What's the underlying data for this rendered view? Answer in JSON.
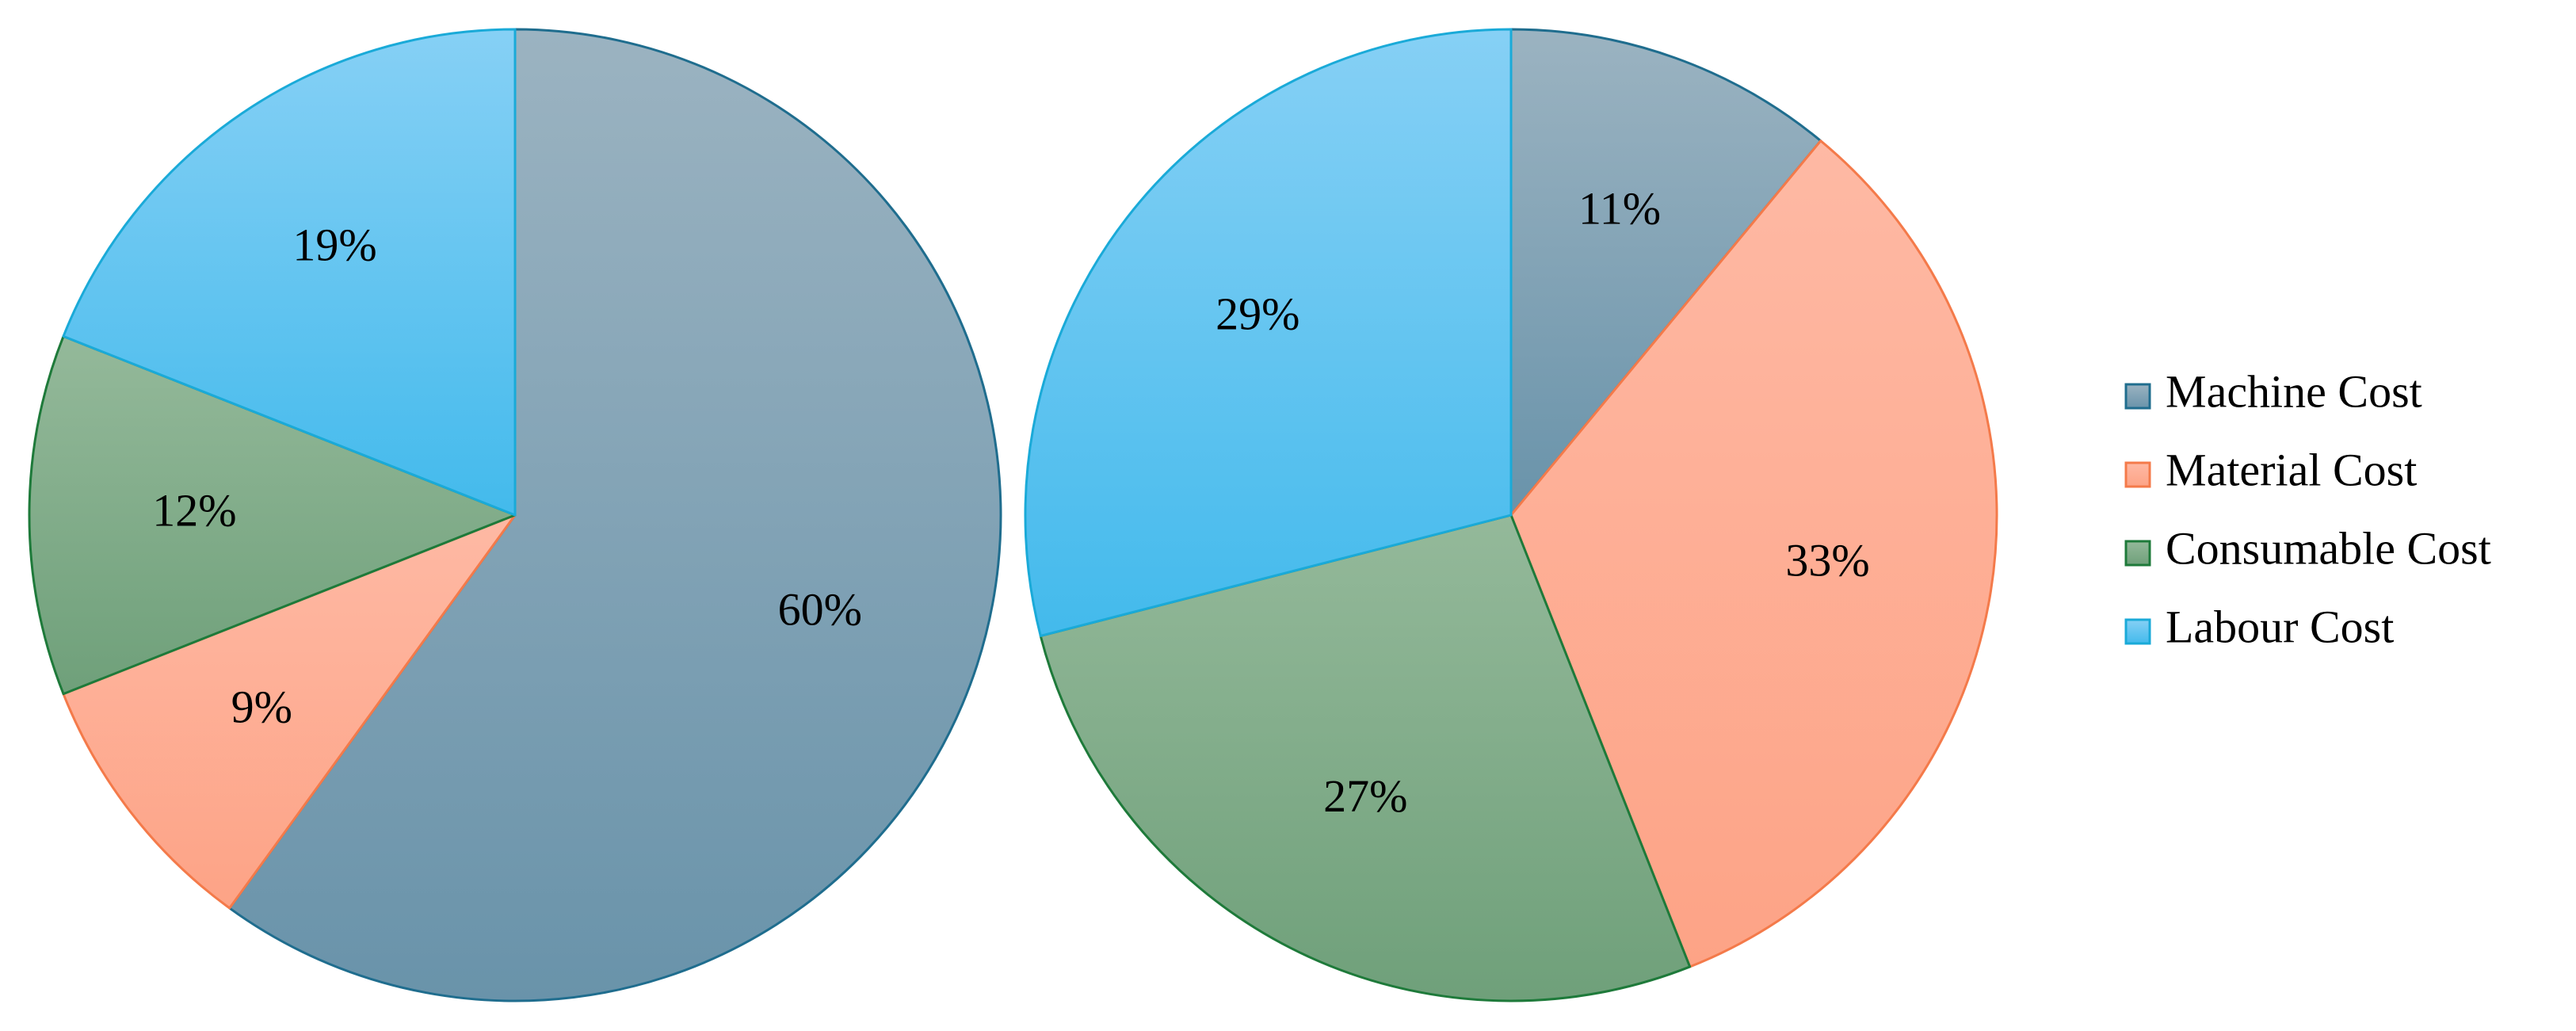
{
  "chart_data": [
    {
      "type": "pie",
      "start_angle_deg": 0,
      "direction": "clockwise",
      "slices": [
        {
          "category": "Machine Cost",
          "value": 60,
          "label": "60%"
        },
        {
          "category": "Material Cost",
          "value": 9,
          "label": "9%"
        },
        {
          "category": "Consumable Cost",
          "value": 12,
          "label": "12%"
        },
        {
          "category": "Labour Cost",
          "value": 19,
          "label": "19%"
        }
      ]
    },
    {
      "type": "pie",
      "start_angle_deg": 0,
      "direction": "clockwise",
      "slices": [
        {
          "category": "Machine Cost",
          "value": 11,
          "label": "11%"
        },
        {
          "category": "Material Cost",
          "value": 33,
          "label": "33%"
        },
        {
          "category": "Consumable Cost",
          "value": 27,
          "label": "27%"
        },
        {
          "category": "Labour Cost",
          "value": 29,
          "label": "29%"
        }
      ]
    }
  ],
  "legend": {
    "placement": "right",
    "items": [
      {
        "label": "Machine Cost",
        "color_top": "#9BB3C1",
        "color_bottom": "#6993AA",
        "stroke": "#1F6D8E"
      },
      {
        "label": "Material Cost",
        "color_top": "#FEB9A4",
        "color_bottom": "#FDA386",
        "stroke": "#F47A4A"
      },
      {
        "label": "Consumable Cost",
        "color_top": "#94B99A",
        "color_bottom": "#6FA07A",
        "stroke": "#1E7A3A"
      },
      {
        "label": "Labour Cost",
        "color_top": "#86D0F5",
        "color_bottom": "#43BAEC",
        "stroke": "#1AAAD8"
      }
    ]
  }
}
